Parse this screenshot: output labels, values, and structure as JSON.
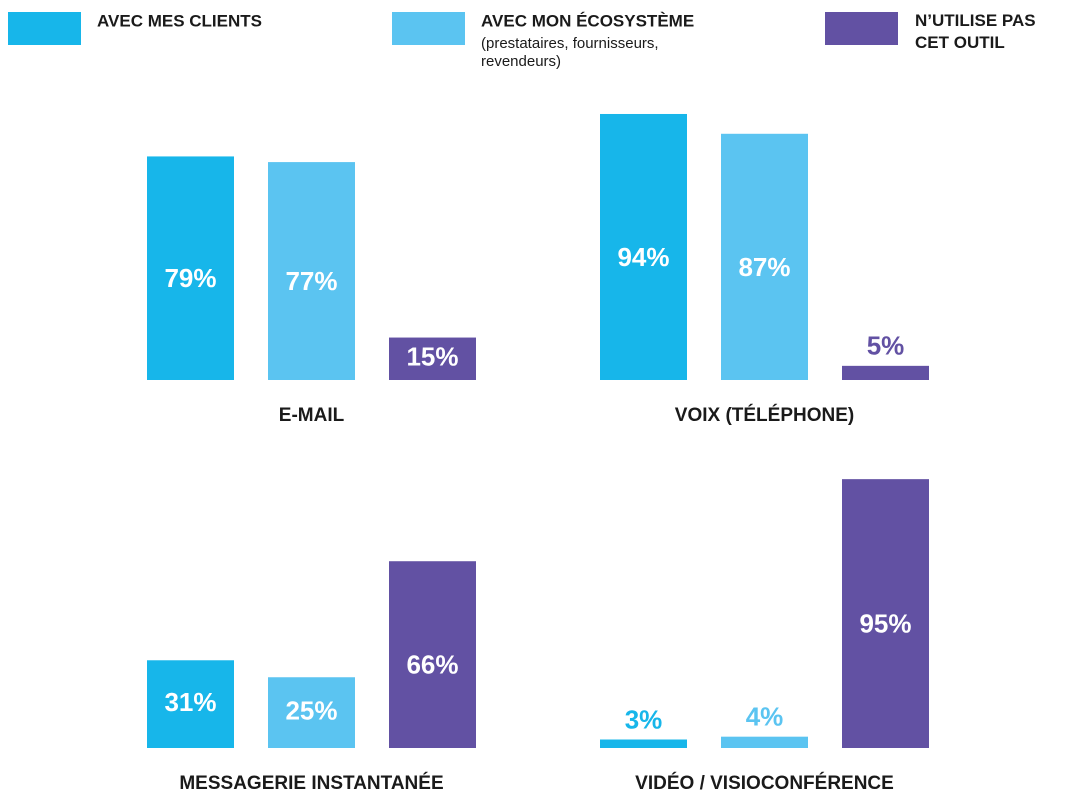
{
  "chart_data": {
    "type": "bar",
    "categories": [
      "E-MAIL",
      "VOIX (TÉLÉPHONE)",
      "MESSAGERIE INSTANTANÉE",
      "VIDÉO / VISIOCONFÉRENCE"
    ],
    "ylim": [
      0,
      100
    ],
    "series": [
      {
        "name": "AVEC MES CLIENTS",
        "color": "#17b6ea",
        "values": [
          79,
          94,
          31,
          3
        ],
        "value_labels": [
          "79%",
          "94%",
          "31%",
          "3%"
        ]
      },
      {
        "name": "AVEC MON ÉCOSYSTÈME",
        "description": "(prestataires, fournisseurs, revendeurs)",
        "color": "#5bc4f1",
        "values": [
          77,
          87,
          25,
          4
        ],
        "value_labels": [
          "77%",
          "87%",
          "25%",
          "4%"
        ]
      },
      {
        "name": "N’UTILISE PAS CET OUTIL",
        "color": "#6251a3",
        "values": [
          15,
          5,
          66,
          95
        ],
        "value_labels": [
          "15%",
          "5%",
          "66%",
          "95%"
        ]
      }
    ]
  }
}
